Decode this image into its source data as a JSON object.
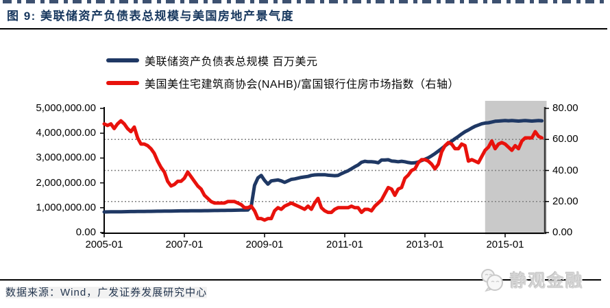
{
  "header": {
    "title": "图 9:  美联储资产负债表总规模与美国房地产景气度"
  },
  "legend": [
    {
      "label": "美联储资产负债表总规模 百万美元",
      "color": "#1f3864"
    },
    {
      "label": "美国美住宅建筑商协会(NAHB)/富国银行住房市场指数（右轴）",
      "color": "#e8120c"
    }
  ],
  "footer": {
    "source": "数据来源：Wind，广发证券发展研究中心",
    "watermark": "静观金融"
  },
  "chart_data": {
    "type": "line",
    "x_start": "2005-01",
    "x_months": 132,
    "x_tick_labels": [
      "2005-01",
      "2007-01",
      "2009-01",
      "2011-01",
      "2013-01",
      "2015-01"
    ],
    "left_axis": {
      "labels": [
        "5,000,000.00",
        "4,000,000.00",
        "3,000,000.00",
        "2,000,000.00",
        "1,000,000.00",
        "0.00"
      ],
      "min": 0,
      "max": 5000000
    },
    "right_axis": {
      "labels": [
        "80.00",
        "60.00",
        "40.00",
        "20.00",
        "0.00"
      ],
      "min": 0,
      "max": 80
    },
    "gridlines_right_values": [
      60,
      40,
      20
    ],
    "grid_color": "#7f7f7f",
    "highlight_region": {
      "start": "2014-07",
      "end": "2016-01",
      "color": "#c9c9c9"
    },
    "series": [
      {
        "name": "美联储资产负债表总规模 百万美元",
        "axis": "left",
        "color": "#1f3864",
        "values": [
          830000,
          832000,
          834000,
          835000,
          836000,
          838000,
          840000,
          842000,
          844000,
          846000,
          848000,
          850000,
          852000,
          853000,
          854000,
          856000,
          858000,
          860000,
          862000,
          864000,
          866000,
          868000,
          870000,
          872000,
          873000,
          874000,
          875000,
          876000,
          877000,
          878000,
          880000,
          882000,
          884000,
          886000,
          888000,
          890000,
          892000,
          894000,
          896000,
          898000,
          900000,
          902000,
          905000,
          908000,
          1050000,
          1900000,
          2200000,
          2300000,
          2100000,
          1950000,
          2080000,
          2100000,
          2120000,
          2080000,
          2020000,
          2080000,
          2140000,
          2160000,
          2190000,
          2220000,
          2240000,
          2260000,
          2300000,
          2320000,
          2330000,
          2330000,
          2330000,
          2310000,
          2300000,
          2290000,
          2300000,
          2370000,
          2430000,
          2490000,
          2570000,
          2650000,
          2720000,
          2830000,
          2870000,
          2850000,
          2850000,
          2840000,
          2810000,
          2920000,
          2920000,
          2930000,
          2880000,
          2870000,
          2850000,
          2870000,
          2850000,
          2820000,
          2800000,
          2810000,
          2840000,
          2900000,
          2950000,
          3010000,
          3090000,
          3180000,
          3280000,
          3380000,
          3490000,
          3590000,
          3680000,
          3780000,
          3870000,
          3970000,
          4060000,
          4130000,
          4210000,
          4280000,
          4330000,
          4380000,
          4410000,
          4420000,
          4450000,
          4480000,
          4490000,
          4500000,
          4510000,
          4500000,
          4510000,
          4500000,
          4490000,
          4500000,
          4510000,
          4500000,
          4490000,
          4500000,
          4510000,
          4500000
        ]
      },
      {
        "name": "美国美住宅建筑商协会(NAHB)/富国银行住房市场指数（右轴）",
        "axis": "right",
        "color": "#e8120c",
        "values": [
          70,
          69,
          70,
          67,
          70,
          72,
          70,
          67,
          65,
          68,
          61,
          57,
          57,
          56,
          54,
          51,
          46,
          42,
          39,
          33,
          30,
          31,
          33,
          33,
          35,
          39,
          36,
          33,
          30,
          28,
          24,
          22,
          20,
          19,
          19,
          19,
          19,
          20,
          20,
          20,
          19,
          18,
          16,
          16,
          17,
          14,
          9,
          9,
          8,
          9,
          9,
          14,
          16,
          15,
          17,
          18,
          19,
          18,
          17,
          16,
          15,
          17,
          15,
          19,
          22,
          16,
          14,
          13,
          13,
          15,
          16,
          16,
          16,
          16,
          17,
          16,
          16,
          13,
          15,
          15,
          14,
          17,
          19,
          21,
          25,
          29,
          28,
          24,
          28,
          29,
          35,
          37,
          40,
          41,
          45,
          47,
          47,
          46,
          44,
          41,
          44,
          52,
          56,
          58,
          57,
          54,
          54,
          57,
          56,
          46,
          47,
          46,
          45,
          49,
          53,
          55,
          59,
          54,
          57,
          58,
          57,
          55,
          53,
          56,
          54,
          59,
          61,
          61,
          61,
          65,
          62,
          61
        ]
      }
    ]
  }
}
